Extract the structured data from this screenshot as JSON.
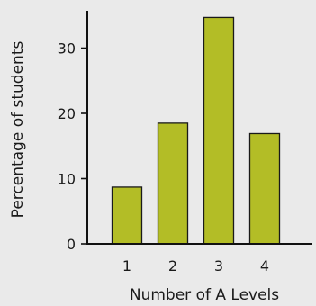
{
  "chart_data": {
    "type": "bar",
    "categories": [
      "1",
      "2",
      "3",
      "4"
    ],
    "values": [
      8.7,
      18.5,
      34.7,
      16.9
    ],
    "title": "",
    "xlabel": "Number of A Levels",
    "ylabel": "Percentage of students",
    "ylim": [
      0,
      37
    ],
    "yticks": [
      0,
      10,
      20,
      30
    ],
    "grid": false,
    "legend": "none",
    "colors": {
      "bar_fill": "#b3bd26",
      "bar_stroke": "#1a1a1a",
      "axis": "#111111",
      "background": "#eaeaea"
    }
  }
}
